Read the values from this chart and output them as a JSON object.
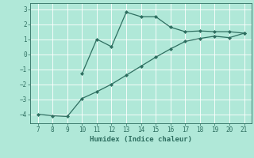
{
  "line1_x": [
    10,
    11,
    12,
    13,
    14,
    15,
    16,
    17,
    18,
    19,
    20,
    21
  ],
  "line1_y": [
    -1.3,
    1.0,
    0.5,
    2.8,
    2.5,
    2.5,
    1.8,
    1.5,
    1.55,
    1.5,
    1.5,
    1.4
  ],
  "line2_x": [
    7,
    8,
    9,
    10,
    11,
    12,
    13,
    14,
    15,
    16,
    17,
    18,
    19,
    20,
    21
  ],
  "line2_y": [
    -4.0,
    -4.1,
    -4.15,
    -2.95,
    -2.5,
    -2.0,
    -1.4,
    -0.8,
    -0.2,
    0.35,
    0.85,
    1.05,
    1.2,
    1.1,
    1.4
  ],
  "line_color": "#2e6e60",
  "background_color": "#b0e8d8",
  "grid_color": "#ffffff",
  "xlabel": "Humidex (Indice chaleur)",
  "xlim": [
    6.5,
    21.5
  ],
  "ylim": [
    -4.6,
    3.4
  ],
  "xticks": [
    7,
    8,
    9,
    10,
    11,
    12,
    13,
    14,
    15,
    16,
    17,
    18,
    19,
    20,
    21
  ],
  "yticks": [
    -4,
    -3,
    -2,
    -1,
    0,
    1,
    2,
    3
  ],
  "tick_fontsize": 5.5,
  "xlabel_fontsize": 6.5,
  "marker": "D",
  "markersize": 2.0,
  "linewidth": 0.9
}
